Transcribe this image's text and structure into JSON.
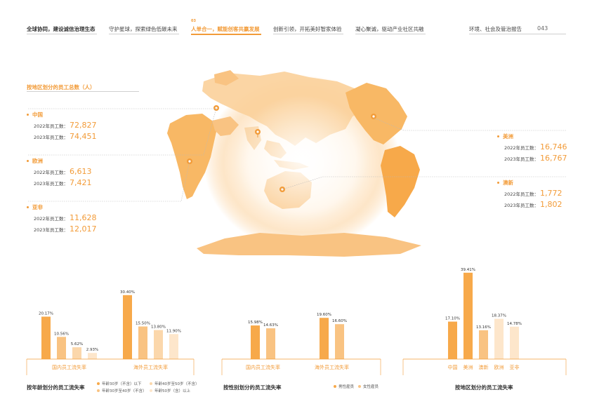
{
  "nav": {
    "items": [
      {
        "label": "全球协同，建设诚信治理生态",
        "type": "first"
      },
      {
        "label": "守护星球，探索绿色低碳未来",
        "type": "normal"
      },
      {
        "label": "人单合一，赋能创客共赢发展",
        "type": "active",
        "chapter": "03"
      },
      {
        "label": "创新引领，开拓美好智家体验",
        "type": "normal"
      },
      {
        "label": "凝心聚诚，驱动产业社区共融",
        "type": "normal"
      },
      {
        "label": "环境、社会及管治报告",
        "type": "normal"
      }
    ],
    "page_number": "043"
  },
  "map_section": {
    "title": "按地区划分的员工总数（人）",
    "regions": [
      {
        "name": "中国",
        "rows": [
          {
            "label": "2022年员工数：",
            "value": "72,827"
          },
          {
            "label": "2023年员工数：",
            "value": "74,451"
          }
        ]
      },
      {
        "name": "欧洲",
        "rows": [
          {
            "label": "2022年员工数：",
            "value": "6,613"
          },
          {
            "label": "2023年员工数：",
            "value": "7,421"
          }
        ]
      },
      {
        "name": "亚非",
        "rows": [
          {
            "label": "2022年员工数：",
            "value": "11,628"
          },
          {
            "label": "2023年员工数：",
            "value": "12,017"
          }
        ]
      },
      {
        "name": "美洲",
        "rows": [
          {
            "label": "2022年员工数：",
            "value": "16,746"
          },
          {
            "label": "2023年员工数：",
            "value": "16,767"
          }
        ]
      },
      {
        "name": "澳新",
        "rows": [
          {
            "label": "2022年员工数：",
            "value": "1,772"
          },
          {
            "label": "2023年员工数：",
            "value": "1,802"
          }
        ]
      }
    ]
  },
  "colors": {
    "accent": "#f29b38",
    "c1": "#f7a94a",
    "c2": "#f9c382",
    "c3": "#fbd7ab",
    "c4": "#fde6cb"
  },
  "chart_data": [
    {
      "type": "bar",
      "title": "按年龄划分的员工流失率",
      "categories": [
        "国内员工流失率",
        "海外员工流失率"
      ],
      "series": [
        {
          "name": "年龄30岁（不含）以下",
          "values": [
            20.17,
            30.4
          ],
          "labels": [
            "20.17%",
            "30.40%"
          ]
        },
        {
          "name": "年龄30岁至40岁（不含）",
          "values": [
            10.56,
            15.5
          ],
          "labels": [
            "10.56%",
            "15.50%"
          ]
        },
        {
          "name": "年龄40岁至50岁（不含）",
          "values": [
            5.62,
            13.8
          ],
          "labels": [
            "5.62%",
            "13.80%"
          ]
        },
        {
          "name": "年龄50岁（含）以上",
          "values": [
            2.93,
            11.9
          ],
          "labels": [
            "2.93%",
            "11.90%"
          ]
        }
      ],
      "ylim": [
        0,
        40
      ]
    },
    {
      "type": "bar",
      "title": "按性别划分的员工流失率",
      "categories": [
        "国内员工流失率",
        "海外员工流失率"
      ],
      "series": [
        {
          "name": "男性雇员",
          "values": [
            15.98,
            19.6
          ],
          "labels": [
            "15.98%",
            "19.60%"
          ]
        },
        {
          "name": "女性雇员",
          "values": [
            14.63,
            16.6
          ],
          "labels": [
            "14.63%",
            "16.60%"
          ]
        }
      ],
      "ylim": [
        0,
        40
      ]
    },
    {
      "type": "bar",
      "title": "按地区划分的员工流失率",
      "categories": [
        "中国",
        "美洲",
        "澳新",
        "欧洲",
        "亚非"
      ],
      "values": [
        17.1,
        39.41,
        13.16,
        18.37,
        14.78
      ],
      "labels": [
        "17.10%",
        "39.41%",
        "13.16%",
        "18.37%",
        "14.78%"
      ],
      "ylim": [
        0,
        40
      ]
    }
  ]
}
